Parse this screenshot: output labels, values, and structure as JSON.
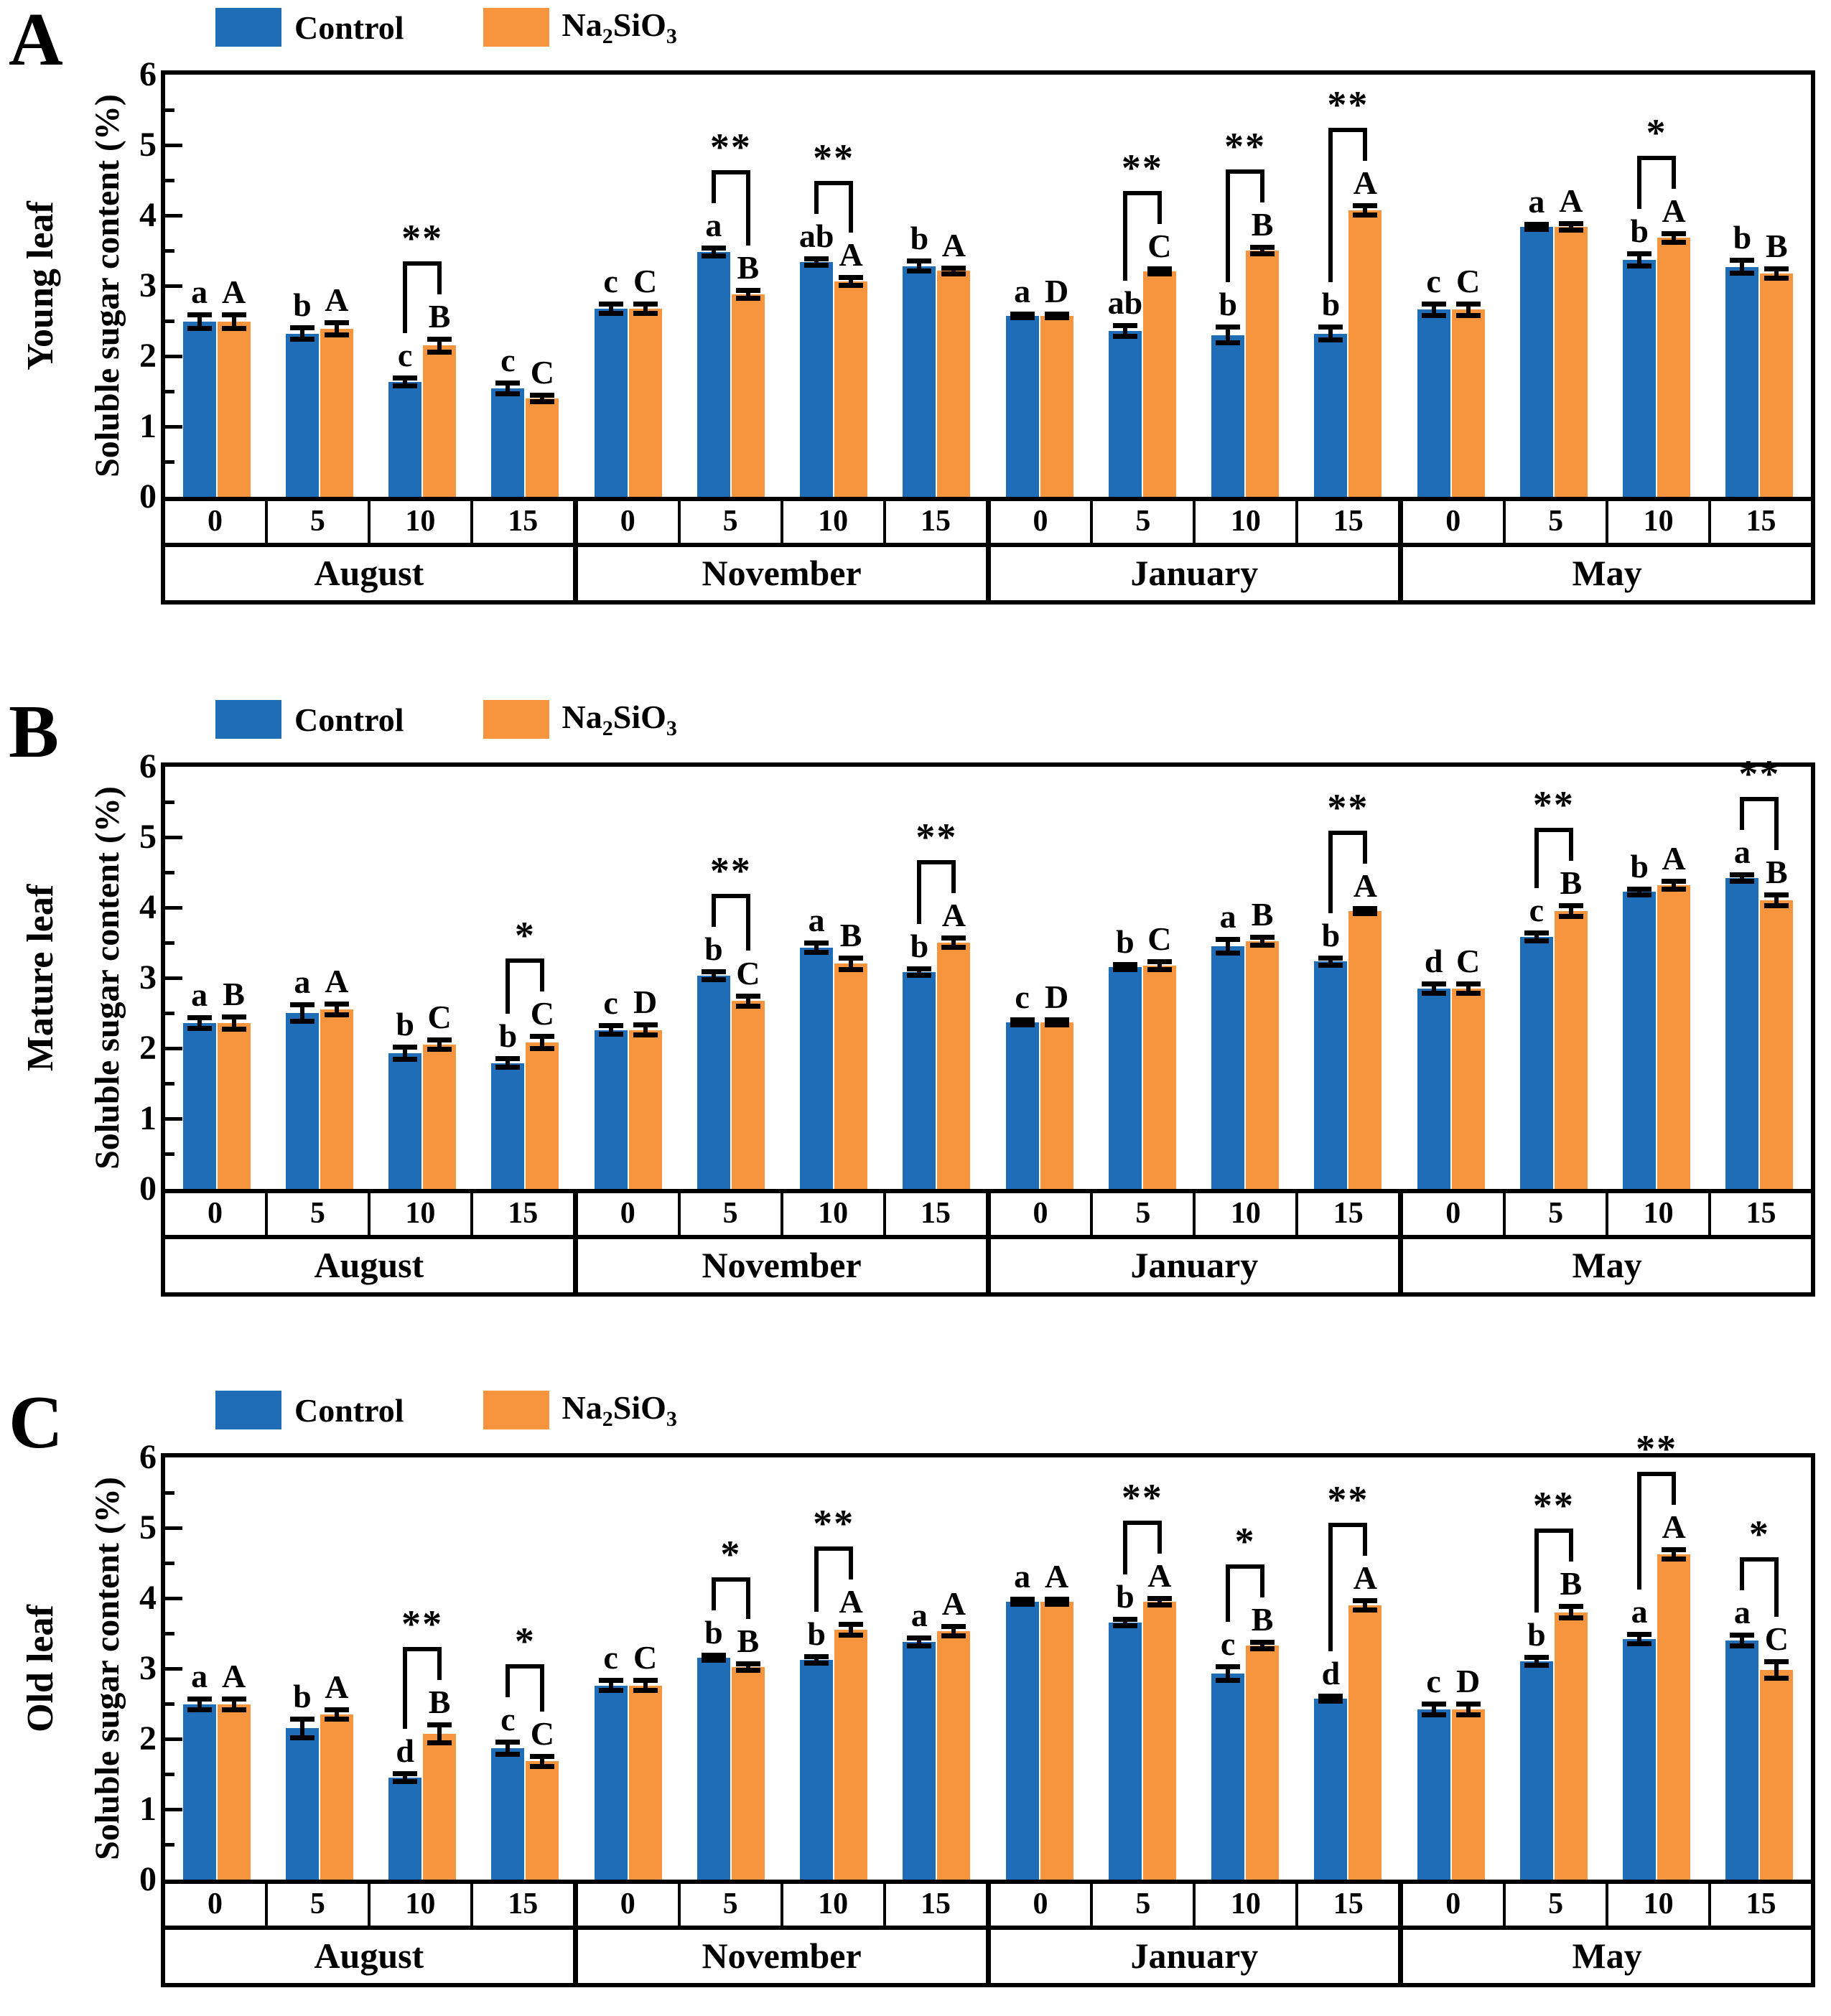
{
  "colors": {
    "control": "#1f6db6",
    "na2sio3": "#f6953d",
    "axis": "#000000",
    "background": "#ffffff"
  },
  "legend": {
    "control_label": "Control",
    "treatment_label_parts": {
      "p1": "Na",
      "s1": "2",
      "p2": "SiO",
      "s2": "3"
    }
  },
  "y_axis": {
    "title": "Soluble sugar content (%)",
    "min": 0,
    "max": 6,
    "major_step": 1,
    "minor_step": 0.5,
    "tick_labels": [
      "0",
      "1",
      "2",
      "3",
      "4",
      "5",
      "6"
    ]
  },
  "x_axis": {
    "dose_labels": [
      "0",
      "5",
      "10",
      "15"
    ],
    "months": [
      "August",
      "November",
      "January",
      "May"
    ]
  },
  "chart_data": [
    {
      "type": "bar",
      "panel_label": "A",
      "row_label": "Young leaf",
      "ylabel": "Soluble sugar content (%)",
      "ylim": [
        0,
        6
      ],
      "series_names": [
        "Control",
        "Na2SiO3"
      ],
      "months": [
        {
          "month": "August",
          "doses": [
            {
              "dose": "0",
              "control": {
                "value": 2.49,
                "err": 0.1,
                "letter": "a"
              },
              "na2sio3": {
                "value": 2.49,
                "err": 0.1,
                "letter": "A"
              },
              "sig": ""
            },
            {
              "dose": "5",
              "control": {
                "value": 2.32,
                "err": 0.09,
                "letter": "b"
              },
              "na2sio3": {
                "value": 2.39,
                "err": 0.09,
                "letter": "A"
              },
              "sig": ""
            },
            {
              "dose": "10",
              "control": {
                "value": 1.63,
                "err": 0.06,
                "letter": "c"
              },
              "na2sio3": {
                "value": 2.15,
                "err": 0.1,
                "letter": "B"
              },
              "sig": "**"
            },
            {
              "dose": "15",
              "control": {
                "value": 1.54,
                "err": 0.08,
                "letter": "c"
              },
              "na2sio3": {
                "value": 1.4,
                "err": 0.05,
                "letter": "C"
              },
              "sig": ""
            }
          ]
        },
        {
          "month": "November",
          "doses": [
            {
              "dose": "0",
              "control": {
                "value": 2.67,
                "err": 0.07,
                "letter": "c"
              },
              "na2sio3": {
                "value": 2.67,
                "err": 0.07,
                "letter": "C"
              },
              "sig": ""
            },
            {
              "dose": "5",
              "control": {
                "value": 3.48,
                "err": 0.06,
                "letter": "a"
              },
              "na2sio3": {
                "value": 2.88,
                "err": 0.06,
                "letter": "B"
              },
              "sig": "**"
            },
            {
              "dose": "10",
              "control": {
                "value": 3.34,
                "err": 0.05,
                "letter": "ab"
              },
              "na2sio3": {
                "value": 3.06,
                "err": 0.06,
                "letter": "A"
              },
              "sig": "**"
            },
            {
              "dose": "15",
              "control": {
                "value": 3.28,
                "err": 0.08,
                "letter": "b"
              },
              "na2sio3": {
                "value": 3.21,
                "err": 0.05,
                "letter": "A"
              },
              "sig": ""
            }
          ]
        },
        {
          "month": "January",
          "doses": [
            {
              "dose": "0",
              "control": {
                "value": 2.57,
                "err": 0.03,
                "letter": "a"
              },
              "na2sio3": {
                "value": 2.57,
                "err": 0.03,
                "letter": "D"
              },
              "sig": ""
            },
            {
              "dose": "5",
              "control": {
                "value": 2.36,
                "err": 0.08,
                "letter": "ab"
              },
              "na2sio3": {
                "value": 3.2,
                "err": 0.04,
                "letter": "C"
              },
              "sig": "**"
            },
            {
              "dose": "10",
              "control": {
                "value": 2.3,
                "err": 0.12,
                "letter": "b"
              },
              "na2sio3": {
                "value": 3.5,
                "err": 0.05,
                "letter": "B"
              },
              "sig": "**"
            },
            {
              "dose": "15",
              "control": {
                "value": 2.32,
                "err": 0.1,
                "letter": "b"
              },
              "na2sio3": {
                "value": 4.07,
                "err": 0.07,
                "letter": "A"
              },
              "sig": "**"
            }
          ]
        },
        {
          "month": "May",
          "doses": [
            {
              "dose": "0",
              "control": {
                "value": 2.66,
                "err": 0.09,
                "letter": "c"
              },
              "na2sio3": {
                "value": 2.66,
                "err": 0.09,
                "letter": "C"
              },
              "sig": ""
            },
            {
              "dose": "5",
              "control": {
                "value": 3.84,
                "err": 0.04,
                "letter": "a"
              },
              "na2sio3": {
                "value": 3.84,
                "err": 0.05,
                "letter": "A"
              },
              "sig": ""
            },
            {
              "dose": "10",
              "control": {
                "value": 3.37,
                "err": 0.09,
                "letter": "b"
              },
              "na2sio3": {
                "value": 3.68,
                "err": 0.07,
                "letter": "A"
              },
              "sig": "*"
            },
            {
              "dose": "15",
              "control": {
                "value": 3.27,
                "err": 0.1,
                "letter": "b"
              },
              "na2sio3": {
                "value": 3.17,
                "err": 0.07,
                "letter": "B"
              },
              "sig": ""
            }
          ]
        }
      ]
    },
    {
      "type": "bar",
      "panel_label": "B",
      "row_label": "Mature leaf",
      "ylabel": "Soluble sugar content (%)",
      "ylim": [
        0,
        6
      ],
      "series_names": [
        "Control",
        "Na2SiO3"
      ],
      "months": [
        {
          "month": "August",
          "doses": [
            {
              "dose": "0",
              "control": {
                "value": 2.36,
                "err": 0.08,
                "letter": "a"
              },
              "na2sio3": {
                "value": 2.36,
                "err": 0.09,
                "letter": "B"
              },
              "sig": ""
            },
            {
              "dose": "5",
              "control": {
                "value": 2.5,
                "err": 0.12,
                "letter": "a"
              },
              "na2sio3": {
                "value": 2.55,
                "err": 0.08,
                "letter": "A"
              },
              "sig": ""
            },
            {
              "dose": "10",
              "control": {
                "value": 1.93,
                "err": 0.09,
                "letter": "b"
              },
              "na2sio3": {
                "value": 2.05,
                "err": 0.07,
                "letter": "C"
              },
              "sig": ""
            },
            {
              "dose": "15",
              "control": {
                "value": 1.79,
                "err": 0.07,
                "letter": "b"
              },
              "na2sio3": {
                "value": 2.08,
                "err": 0.09,
                "letter": "C"
              },
              "sig": "*"
            }
          ]
        },
        {
          "month": "November",
          "doses": [
            {
              "dose": "0",
              "control": {
                "value": 2.26,
                "err": 0.07,
                "letter": "c"
              },
              "na2sio3": {
                "value": 2.26,
                "err": 0.08,
                "letter": "D"
              },
              "sig": ""
            },
            {
              "dose": "5",
              "control": {
                "value": 3.03,
                "err": 0.06,
                "letter": "b"
              },
              "na2sio3": {
                "value": 2.67,
                "err": 0.08,
                "letter": "C"
              },
              "sig": "**"
            },
            {
              "dose": "10",
              "control": {
                "value": 3.43,
                "err": 0.07,
                "letter": "a"
              },
              "na2sio3": {
                "value": 3.2,
                "err": 0.09,
                "letter": "B"
              },
              "sig": ""
            },
            {
              "dose": "15",
              "control": {
                "value": 3.08,
                "err": 0.05,
                "letter": "b"
              },
              "na2sio3": {
                "value": 3.5,
                "err": 0.07,
                "letter": "A"
              },
              "sig": "**"
            }
          ]
        },
        {
          "month": "January",
          "doses": [
            {
              "dose": "0",
              "control": {
                "value": 2.37,
                "err": 0.04,
                "letter": "c"
              },
              "na2sio3": {
                "value": 2.37,
                "err": 0.04,
                "letter": "D"
              },
              "sig": ""
            },
            {
              "dose": "5",
              "control": {
                "value": 3.15,
                "err": 0.04,
                "letter": "b"
              },
              "na2sio3": {
                "value": 3.17,
                "err": 0.06,
                "letter": "C"
              },
              "sig": ""
            },
            {
              "dose": "10",
              "control": {
                "value": 3.45,
                "err": 0.1,
                "letter": "a"
              },
              "na2sio3": {
                "value": 3.52,
                "err": 0.06,
                "letter": "B"
              },
              "sig": ""
            },
            {
              "dose": "15",
              "control": {
                "value": 3.23,
                "err": 0.06,
                "letter": "b"
              },
              "na2sio3": {
                "value": 3.95,
                "err": 0.04,
                "letter": "A"
              },
              "sig": "**"
            }
          ]
        },
        {
          "month": "May",
          "doses": [
            {
              "dose": "0",
              "control": {
                "value": 2.85,
                "err": 0.07,
                "letter": "d"
              },
              "na2sio3": {
                "value": 2.85,
                "err": 0.07,
                "letter": "C"
              },
              "sig": ""
            },
            {
              "dose": "5",
              "control": {
                "value": 3.58,
                "err": 0.06,
                "letter": "c"
              },
              "na2sio3": {
                "value": 3.95,
                "err": 0.08,
                "letter": "B"
              },
              "sig": "**"
            },
            {
              "dose": "10",
              "control": {
                "value": 4.22,
                "err": 0.05,
                "letter": "b"
              },
              "na2sio3": {
                "value": 4.32,
                "err": 0.06,
                "letter": "A"
              },
              "sig": ""
            },
            {
              "dose": "15",
              "control": {
                "value": 4.42,
                "err": 0.05,
                "letter": "a"
              },
              "na2sio3": {
                "value": 4.1,
                "err": 0.08,
                "letter": "B"
              },
              "sig": "**"
            }
          ]
        }
      ]
    },
    {
      "type": "bar",
      "panel_label": "C",
      "row_label": "Old leaf",
      "ylabel": "Soluble sugar content (%)",
      "ylim": [
        0,
        6
      ],
      "series_names": [
        "Control",
        "Na2SiO3"
      ],
      "months": [
        {
          "month": "August",
          "doses": [
            {
              "dose": "0",
              "control": {
                "value": 2.49,
                "err": 0.08,
                "letter": "a"
              },
              "na2sio3": {
                "value": 2.49,
                "err": 0.08,
                "letter": "A"
              },
              "sig": ""
            },
            {
              "dose": "5",
              "control": {
                "value": 2.15,
                "err": 0.14,
                "letter": "b"
              },
              "na2sio3": {
                "value": 2.35,
                "err": 0.07,
                "letter": "A"
              },
              "sig": ""
            },
            {
              "dose": "10",
              "control": {
                "value": 1.45,
                "err": 0.06,
                "letter": "d"
              },
              "na2sio3": {
                "value": 2.07,
                "err": 0.13,
                "letter": "B"
              },
              "sig": "**"
            },
            {
              "dose": "15",
              "control": {
                "value": 1.87,
                "err": 0.09,
                "letter": "c"
              },
              "na2sio3": {
                "value": 1.68,
                "err": 0.08,
                "letter": "C"
              },
              "sig": "*"
            }
          ]
        },
        {
          "month": "November",
          "doses": [
            {
              "dose": "0",
              "control": {
                "value": 2.76,
                "err": 0.08,
                "letter": "c"
              },
              "na2sio3": {
                "value": 2.76,
                "err": 0.08,
                "letter": "C"
              },
              "sig": ""
            },
            {
              "dose": "5",
              "control": {
                "value": 3.15,
                "err": 0.04,
                "letter": "b"
              },
              "na2sio3": {
                "value": 3.02,
                "err": 0.05,
                "letter": "B"
              },
              "sig": "*"
            },
            {
              "dose": "10",
              "control": {
                "value": 3.12,
                "err": 0.05,
                "letter": "b"
              },
              "na2sio3": {
                "value": 3.55,
                "err": 0.08,
                "letter": "A"
              },
              "sig": "**"
            },
            {
              "dose": "15",
              "control": {
                "value": 3.38,
                "err": 0.06,
                "letter": "a"
              },
              "na2sio3": {
                "value": 3.53,
                "err": 0.07,
                "letter": "A"
              },
              "sig": ""
            }
          ]
        },
        {
          "month": "January",
          "doses": [
            {
              "dose": "0",
              "control": {
                "value": 3.95,
                "err": 0.04,
                "letter": "a"
              },
              "na2sio3": {
                "value": 3.95,
                "err": 0.04,
                "letter": "A"
              },
              "sig": ""
            },
            {
              "dose": "5",
              "control": {
                "value": 3.65,
                "err": 0.05,
                "letter": "b"
              },
              "na2sio3": {
                "value": 3.95,
                "err": 0.05,
                "letter": "A"
              },
              "sig": "**"
            },
            {
              "dose": "10",
              "control": {
                "value": 2.93,
                "err": 0.1,
                "letter": "c"
              },
              "na2sio3": {
                "value": 3.33,
                "err": 0.05,
                "letter": "B"
              },
              "sig": "*"
            },
            {
              "dose": "15",
              "control": {
                "value": 2.57,
                "err": 0.04,
                "letter": "d"
              },
              "na2sio3": {
                "value": 3.9,
                "err": 0.07,
                "letter": "A"
              },
              "sig": "**"
            }
          ]
        },
        {
          "month": "May",
          "doses": [
            {
              "dose": "0",
              "control": {
                "value": 2.42,
                "err": 0.08,
                "letter": "c"
              },
              "na2sio3": {
                "value": 2.42,
                "err": 0.08,
                "letter": "D"
              },
              "sig": ""
            },
            {
              "dose": "5",
              "control": {
                "value": 3.1,
                "err": 0.06,
                "letter": "b"
              },
              "na2sio3": {
                "value": 3.8,
                "err": 0.09,
                "letter": "B"
              },
              "sig": "**"
            },
            {
              "dose": "10",
              "control": {
                "value": 3.42,
                "err": 0.07,
                "letter": "a"
              },
              "na2sio3": {
                "value": 4.62,
                "err": 0.07,
                "letter": "A"
              },
              "sig": "**"
            },
            {
              "dose": "15",
              "control": {
                "value": 3.4,
                "err": 0.08,
                "letter": "a"
              },
              "na2sio3": {
                "value": 2.98,
                "err": 0.12,
                "letter": "C"
              },
              "sig": "*"
            }
          ]
        }
      ]
    }
  ]
}
